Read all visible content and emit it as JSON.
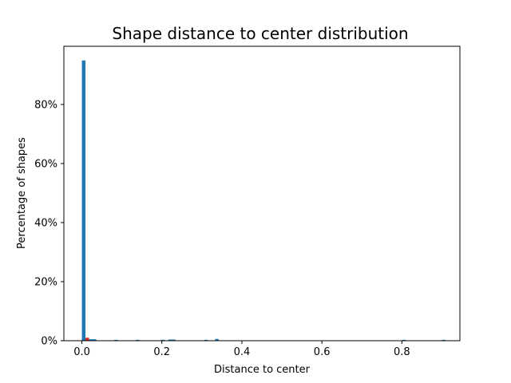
{
  "chart_data": {
    "type": "bar",
    "title": "Shape distance to center distribution",
    "xlabel": "Distance to center",
    "ylabel": "Percentage of shapes",
    "xlim": [
      -0.045,
      0.945
    ],
    "ylim": [
      0,
      99.7
    ],
    "x_ticks": [
      {
        "value": 0.0,
        "label": "0.0"
      },
      {
        "value": 0.2,
        "label": "0.2"
      },
      {
        "value": 0.4,
        "label": "0.4"
      },
      {
        "value": 0.6,
        "label": "0.6"
      },
      {
        "value": 0.8,
        "label": "0.8"
      }
    ],
    "y_ticks": [
      {
        "value": 0,
        "label": "0%"
      },
      {
        "value": 20,
        "label": "20%"
      },
      {
        "value": 40,
        "label": "40%"
      },
      {
        "value": 60,
        "label": "60%"
      },
      {
        "value": 80,
        "label": "80%"
      }
    ],
    "grid": false,
    "legend": "none",
    "series": [
      {
        "color": "#1f77b4",
        "bin_width": 0.009,
        "bins": [
          {
            "x": 0.0045,
            "y": 94.9
          },
          {
            "x": 0.0225,
            "y": 0.5
          },
          {
            "x": 0.0315,
            "y": 0.5
          },
          {
            "x": 0.0855,
            "y": 0.3
          },
          {
            "x": 0.1395,
            "y": 0.3
          },
          {
            "x": 0.2025,
            "y": 0.3
          },
          {
            "x": 0.2205,
            "y": 0.4
          },
          {
            "x": 0.2295,
            "y": 0.4
          },
          {
            "x": 0.3105,
            "y": 0.3
          },
          {
            "x": 0.3375,
            "y": 0.6
          },
          {
            "x": 0.8055,
            "y": 0.3
          },
          {
            "x": 0.9045,
            "y": 0.3
          }
        ]
      },
      {
        "color": "#d62728",
        "bin_width": 0.009,
        "bins": [
          {
            "x": 0.0135,
            "y": 1.0
          }
        ]
      }
    ]
  }
}
